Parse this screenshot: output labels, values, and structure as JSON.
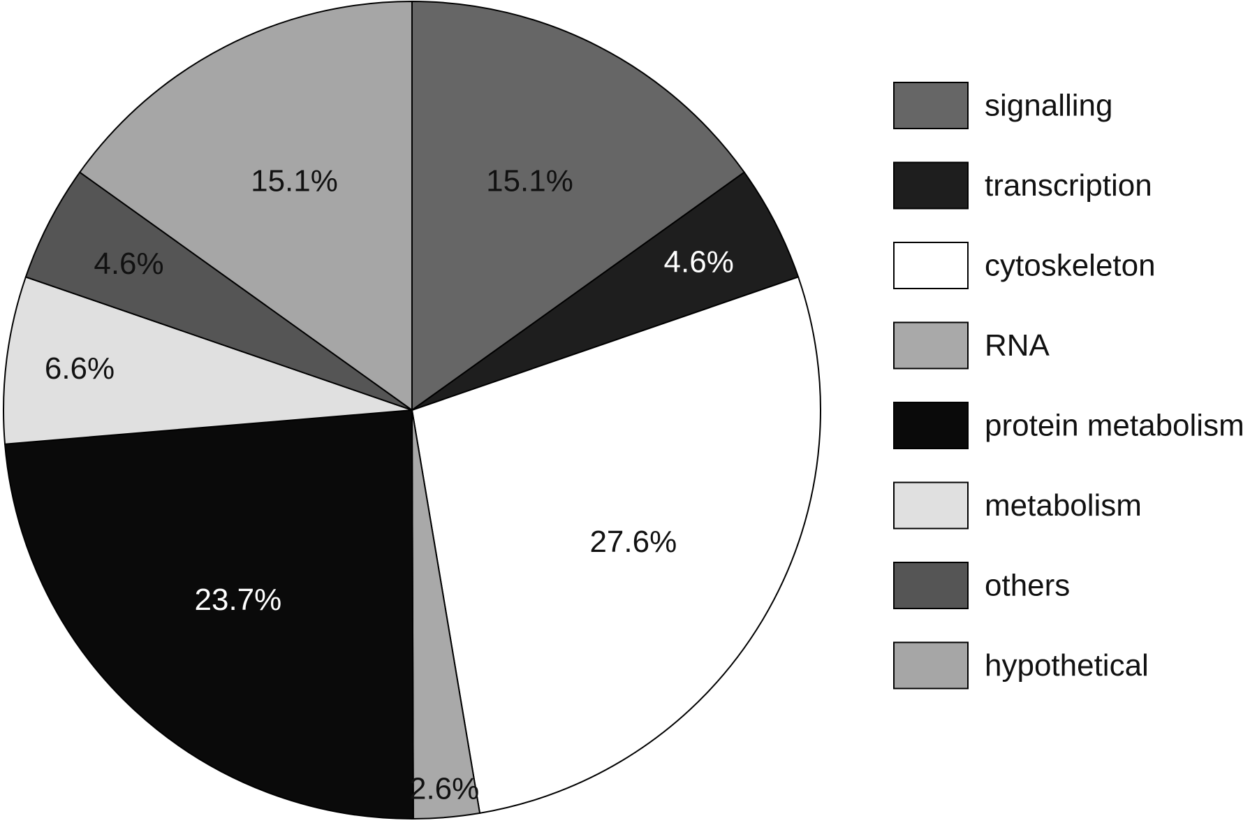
{
  "chart_data": {
    "type": "pie",
    "start": "top",
    "direction": "clockwise",
    "legend_position": "right",
    "slices": [
      {
        "name": "signalling",
        "value": 15.1,
        "label": "15.1%",
        "color": "#666666",
        "label_color": "#111111"
      },
      {
        "name": "transcription",
        "value": 4.6,
        "label": "4.6%",
        "color": "#1e1e1e",
        "label_color": "#ffffff"
      },
      {
        "name": "cytoskeleton",
        "value": 27.6,
        "label": "27.6%",
        "color": "#ffffff",
        "label_color": "#111111"
      },
      {
        "name": "RNA",
        "value": 2.6,
        "label": "2.6%",
        "color": "#a9a9a9",
        "label_color": "#111111"
      },
      {
        "name": "protein metabolism",
        "value": 23.7,
        "label": "23.7%",
        "color": "#0a0a0a",
        "label_color": "#ffffff"
      },
      {
        "name": "metabolism",
        "value": 6.6,
        "label": "6.6%",
        "color": "#e0e0e0",
        "label_color": "#111111"
      },
      {
        "name": "others",
        "value": 4.6,
        "label": "4.6%",
        "color": "#555555",
        "label_color": "#111111"
      },
      {
        "name": "hypothetical",
        "value": 15.1,
        "label": "15.1%",
        "color": "#a6a6a6",
        "label_color": "#111111"
      }
    ]
  }
}
